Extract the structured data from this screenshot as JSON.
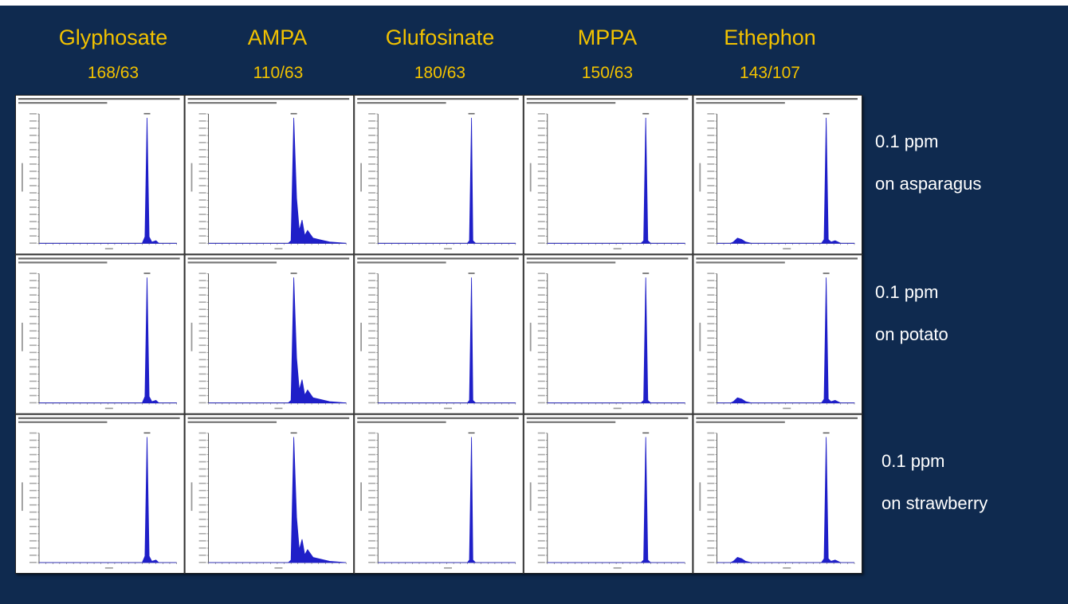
{
  "compounds": [
    {
      "name": "Glyphosate",
      "transition": "168/63"
    },
    {
      "name": "AMPA",
      "transition": "110/63"
    },
    {
      "name": "Glufosinate",
      "transition": "180/63"
    },
    {
      "name": "MPPA",
      "transition": "150/63"
    },
    {
      "name": "Ethephon",
      "transition": "143/107"
    }
  ],
  "rows": [
    {
      "line1": "0.1 ppm",
      "line2": "on asparagus"
    },
    {
      "line1": "0.1 ppm",
      "line2": "on potato"
    },
    {
      "line1": "0.1 ppm",
      "line2": "on strawberry"
    }
  ],
  "colors": {
    "background": "#0f2a4f",
    "heading": "#f2c200",
    "trace": "#1f1fc8"
  },
  "chart_data": {
    "type": "line",
    "grid": "3 rows x 5 columns of chromatograms",
    "xlabel": "",
    "ylabel": "",
    "panels": [
      {
        "row": 0,
        "col": 0,
        "xlim": [
          0,
          1
        ],
        "ylim": [
          0,
          1
        ],
        "x": [
          0.72,
          0.75,
          0.77,
          0.785,
          0.8,
          0.82,
          0.85,
          0.87,
          0.9,
          1.0
        ],
        "y": [
          0,
          0,
          0.05,
          0.97,
          0.05,
          0.01,
          0.02,
          0,
          0,
          0
        ]
      },
      {
        "row": 0,
        "col": 1,
        "xlim": [
          0,
          1
        ],
        "ylim": [
          0,
          1
        ],
        "x": [
          0.55,
          0.58,
          0.6,
          0.62,
          0.64,
          0.66,
          0.68,
          0.7,
          0.72,
          0.76,
          0.8,
          0.88,
          1.0
        ],
        "y": [
          0,
          0,
          0.02,
          0.97,
          0.35,
          0.1,
          0.18,
          0.06,
          0.1,
          0.04,
          0.03,
          0.01,
          0
        ]
      },
      {
        "row": 0,
        "col": 2,
        "xlim": [
          0,
          1
        ],
        "ylim": [
          0,
          1
        ],
        "x": [
          0.62,
          0.65,
          0.665,
          0.68,
          0.69,
          0.71,
          0.75,
          1.0
        ],
        "y": [
          0,
          0,
          0.02,
          0.97,
          0.02,
          0,
          0,
          0
        ]
      },
      {
        "row": 0,
        "col": 3,
        "xlim": [
          0,
          1
        ],
        "ylim": [
          0,
          1
        ],
        "x": [
          0.65,
          0.68,
          0.7,
          0.715,
          0.73,
          0.75,
          1.0
        ],
        "y": [
          0,
          0,
          0.02,
          0.97,
          0.02,
          0,
          0
        ]
      },
      {
        "row": 0,
        "col": 4,
        "xlim": [
          0,
          1
        ],
        "ylim": [
          0,
          1
        ],
        "x": [
          0.1,
          0.12,
          0.15,
          0.18,
          0.21,
          0.25,
          0.73,
          0.76,
          0.78,
          0.795,
          0.81,
          0.83,
          0.86,
          0.9,
          1.0
        ],
        "y": [
          0,
          0.01,
          0.04,
          0.03,
          0.01,
          0,
          0,
          0,
          0.03,
          0.97,
          0.03,
          0.01,
          0.02,
          0,
          0
        ]
      }
    ]
  }
}
